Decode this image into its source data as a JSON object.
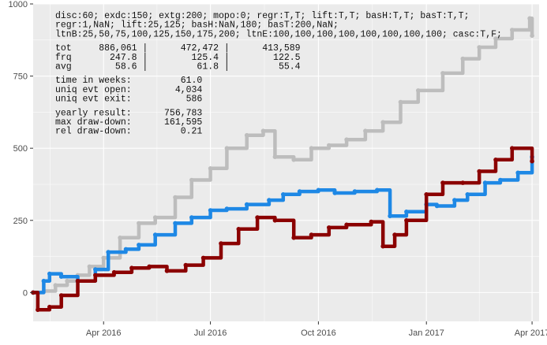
{
  "chart_data": {
    "type": "line",
    "title": "",
    "xlabel": "",
    "ylabel": "",
    "ylim": [
      -100,
      1000
    ],
    "xlim": [
      "2016-02-01",
      "2017-04-07"
    ],
    "grid": true,
    "legend": "none",
    "background": "#ebebeb",
    "y_ticks": [
      0,
      250,
      500,
      750,
      1000
    ],
    "y_tick_labels": [
      "0",
      "250",
      "500",
      "750",
      "1000"
    ],
    "x_ticks": [
      "2016-04-01",
      "2016-07-01",
      "2016-10-01",
      "2017-01-01",
      "2017-04-01"
    ],
    "x_tick_labels": [
      "Apr 2016",
      "Jul 2016",
      "Oct 2016",
      "Jan 2017",
      "Apr 2017"
    ],
    "colors": {
      "gray": "#bdbdbd",
      "blue": "#1e88e5",
      "red": "#8b0000"
    },
    "series": [
      {
        "color": "#bdbdbd",
        "points": [
          [
            "2016-02-01",
            0
          ],
          [
            "2016-02-10",
            5
          ],
          [
            "2016-02-20",
            25
          ],
          [
            "2016-03-01",
            40
          ],
          [
            "2016-03-10",
            60
          ],
          [
            "2016-03-20",
            90
          ],
          [
            "2016-04-01",
            120
          ],
          [
            "2016-04-15",
            190
          ],
          [
            "2016-05-01",
            240
          ],
          [
            "2016-05-15",
            260
          ],
          [
            "2016-06-01",
            330
          ],
          [
            "2016-06-15",
            390
          ],
          [
            "2016-07-01",
            430
          ],
          [
            "2016-07-15",
            500
          ],
          [
            "2016-08-01",
            545
          ],
          [
            "2016-08-15",
            560
          ],
          [
            "2016-08-25",
            470
          ],
          [
            "2016-09-10",
            460
          ],
          [
            "2016-09-25",
            500
          ],
          [
            "2016-10-10",
            510
          ],
          [
            "2016-10-25",
            530
          ],
          [
            "2016-11-10",
            560
          ],
          [
            "2016-11-25",
            590
          ],
          [
            "2016-12-10",
            660
          ],
          [
            "2016-12-25",
            700
          ],
          [
            "2017-01-15",
            760
          ],
          [
            "2017-02-01",
            810
          ],
          [
            "2017-02-15",
            850
          ],
          [
            "2017-03-01",
            880
          ],
          [
            "2017-03-15",
            910
          ],
          [
            "2017-03-30",
            950
          ],
          [
            "2017-04-01",
            890
          ]
        ]
      },
      {
        "color": "#1e88e5",
        "points": [
          [
            "2016-02-01",
            0
          ],
          [
            "2016-02-10",
            40
          ],
          [
            "2016-02-15",
            65
          ],
          [
            "2016-02-25",
            55
          ],
          [
            "2016-03-10",
            40
          ],
          [
            "2016-03-25",
            80
          ],
          [
            "2016-04-05",
            140
          ],
          [
            "2016-04-20",
            150
          ],
          [
            "2016-05-01",
            165
          ],
          [
            "2016-05-15",
            200
          ],
          [
            "2016-06-01",
            240
          ],
          [
            "2016-06-15",
            260
          ],
          [
            "2016-07-01",
            285
          ],
          [
            "2016-07-15",
            290
          ],
          [
            "2016-08-01",
            305
          ],
          [
            "2016-08-20",
            320
          ],
          [
            "2016-09-01",
            340
          ],
          [
            "2016-09-15",
            350
          ],
          [
            "2016-10-01",
            355
          ],
          [
            "2016-10-15",
            345
          ],
          [
            "2016-11-01",
            350
          ],
          [
            "2016-11-20",
            355
          ],
          [
            "2016-12-01",
            265
          ],
          [
            "2016-12-15",
            280
          ],
          [
            "2017-01-01",
            305
          ],
          [
            "2017-01-10",
            300
          ],
          [
            "2017-01-25",
            320
          ],
          [
            "2017-02-05",
            340
          ],
          [
            "2017-02-20",
            380
          ],
          [
            "2017-03-05",
            390
          ],
          [
            "2017-03-20",
            415
          ],
          [
            "2017-04-01",
            470
          ]
        ]
      },
      {
        "color": "#8b0000",
        "points": [
          [
            "2016-02-01",
            0
          ],
          [
            "2016-02-05",
            -60
          ],
          [
            "2016-02-15",
            -50
          ],
          [
            "2016-02-25",
            -10
          ],
          [
            "2016-03-10",
            40
          ],
          [
            "2016-03-25",
            60
          ],
          [
            "2016-04-10",
            70
          ],
          [
            "2016-04-25",
            85
          ],
          [
            "2016-05-10",
            90
          ],
          [
            "2016-05-25",
            75
          ],
          [
            "2016-06-10",
            95
          ],
          [
            "2016-06-25",
            120
          ],
          [
            "2016-07-10",
            170
          ],
          [
            "2016-07-25",
            220
          ],
          [
            "2016-08-10",
            260
          ],
          [
            "2016-08-25",
            250
          ],
          [
            "2016-09-10",
            190
          ],
          [
            "2016-09-25",
            200
          ],
          [
            "2016-10-10",
            225
          ],
          [
            "2016-10-25",
            235
          ],
          [
            "2016-11-15",
            245
          ],
          [
            "2016-11-25",
            160
          ],
          [
            "2016-12-05",
            200
          ],
          [
            "2016-12-15",
            250
          ],
          [
            "2017-01-01",
            340
          ],
          [
            "2017-01-15",
            380
          ],
          [
            "2017-02-01",
            380
          ],
          [
            "2017-02-15",
            420
          ],
          [
            "2017-03-01",
            460
          ],
          [
            "2017-03-15",
            500
          ],
          [
            "2017-04-01",
            455
          ]
        ]
      }
    ],
    "annotations": [
      "disc:60; exdc:150; extg:200; mopo:0; regr:T,T; lift:T,T; basH:T,T; basT:T,T;",
      "regr:1,NaN; lift:25,125; basH:NaN,180; basT:200,NaN;",
      "ltnB:25,50,75,100,125,150,175,200; ltnE:100,100,100,100,100,100,100,100; casc:T,F;",
      "",
      "tot     886,061 |      472,472 |      413,589",
      "frq       247.8 |        125.4 |        122.5",
      "avg        58.6 |         61.8 |         55.4",
      "",
      "time in weeks:         61.0",
      "uniq evt open:        4,034",
      "uniq evt exit:          586",
      "",
      "yearly result:      756,783",
      "max draw-down:      161,595",
      "rel draw-down:         0.21"
    ]
  }
}
